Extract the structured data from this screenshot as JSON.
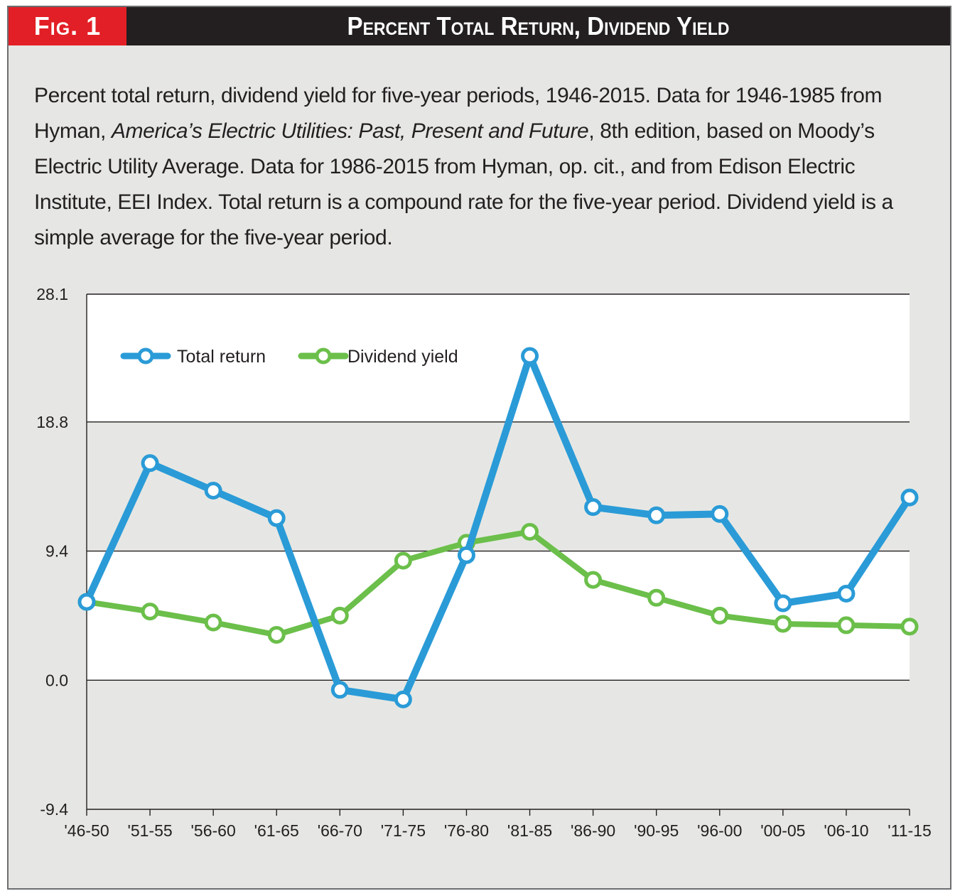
{
  "header": {
    "fig_label": "Fig. 1",
    "title": "Percent Total Return, Dividend Yield"
  },
  "caption": {
    "part1": "Percent total return, dividend yield for five-year periods, 1946-2015. Data for 1946-1985 from Hyman, ",
    "book_title": "America’s Electric Utilities: Past, Present and Future",
    "part2": ", 8th edition, based on Moody’s Electric Utility Average. Data for 1986-2015 from Hyman, op. cit., and from Edison Electric Institute, EEI Index. Total return is a compound rate for the five-year period. Dividend yield is a simple average for the five-year period."
  },
  "colors": {
    "header_bg": "#231f20",
    "fig_label_bg": "#e21f26",
    "panel_bg": "#e6e7e4",
    "total_return": "#2a9bd7",
    "dividend_yield": "#6bbf4a"
  },
  "chart_data": {
    "type": "line",
    "categories": [
      "'46-50",
      "'51-55",
      "'56-60",
      "'61-65",
      "'66-70",
      "'71-75",
      "'76-80",
      "'81-85",
      "'86-90",
      "'90-95",
      "'96-00",
      "'00-05",
      "'06-10",
      "'11-15"
    ],
    "series": [
      {
        "name": "Total return",
        "color": "#2a9bd7",
        "values": [
          5.7,
          15.8,
          13.8,
          11.8,
          -0.7,
          -1.4,
          9.1,
          23.6,
          12.6,
          12.0,
          12.1,
          5.6,
          6.3,
          13.3
        ]
      },
      {
        "name": "Dividend yield",
        "color": "#6bbf4a",
        "values": [
          5.7,
          5.0,
          4.2,
          3.3,
          4.7,
          8.7,
          10.0,
          10.8,
          7.3,
          6.0,
          4.7,
          4.1,
          4.0,
          3.9
        ]
      }
    ],
    "y_ticks": [
      "28.1",
      "18.8",
      "9.4",
      "0.0",
      "-9.4"
    ],
    "ylim": [
      -9.4,
      28.1
    ],
    "legend": "top-left",
    "grid": "horizontal",
    "banding": "alternating white and gray bands"
  }
}
